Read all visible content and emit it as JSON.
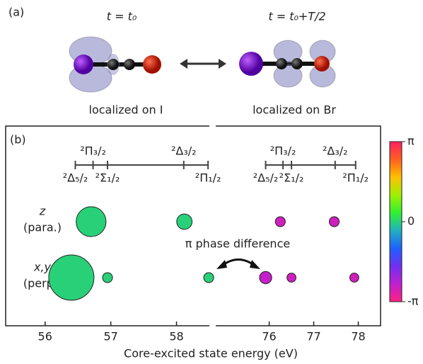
{
  "panel_a": {
    "label": "(a)",
    "states": [
      {
        "time": "t = t₀",
        "caption": "localized on I"
      },
      {
        "time": "t = t₀+T/2",
        "caption": "localized on Br"
      }
    ]
  },
  "chart_data": {
    "type": "bubble",
    "label": "(b)",
    "xlabel": "Core-excited state energy (eV)",
    "categories": [
      [
        "z",
        "(para.)"
      ],
      [
        "x,y",
        "(perp.)"
      ]
    ],
    "annotation": "π phase difference",
    "clim": [
      -3.14159,
      3.14159
    ],
    "cticks": [
      {
        "value": 3.14159,
        "label": "π"
      },
      0,
      {
        "value": -3.14159,
        "label": "-π"
      }
    ],
    "colormap": [
      "#ff2080",
      "#c020d0",
      "#7030f0",
      "#2060ff",
      "#20b0c0",
      "#30f030",
      "#a0f000",
      "#ffc000",
      "#ff6020",
      "#ff2060"
    ],
    "panels": [
      {
        "xlim": [
          55.4,
          58.5
        ],
        "xticks": [
          56,
          57,
          58
        ],
        "levels": [
          {
            "label": "²Δ₅/₂",
            "x": 56.46,
            "side": "below"
          },
          {
            "label": "²Π₃/₂",
            "x": 56.73,
            "side": "above"
          },
          {
            "label": "²Σ₁/₂",
            "x": 56.95,
            "side": "below"
          },
          {
            "label": "²Δ₃/₂",
            "x": 58.11,
            "side": "above"
          },
          {
            "label": "²Π₁/₂",
            "x": 58.48,
            "side": "below"
          }
        ],
        "series": [
          {
            "x": [
              56.7,
              58.12
            ],
            "sizes": [
              0.66,
              0.34
            ],
            "phases": [
              0,
              0
            ]
          },
          {
            "x": [
              56.4,
              56.95,
              58.49
            ],
            "sizes": [
              1,
              0.22,
              0.22
            ],
            "phases": [
              0,
              0,
              0
            ]
          }
        ]
      },
      {
        "xlim": [
          74.8,
          78.5
        ],
        "xticks": [
          76,
          77,
          78
        ],
        "levels": [
          {
            "label": "²Δ₅/₂",
            "x": 75.92,
            "side": "below"
          },
          {
            "label": "²Π₃/₂",
            "x": 76.31,
            "side": "above"
          },
          {
            "label": "²Σ₁/₂",
            "x": 76.5,
            "side": "below"
          },
          {
            "label": "²Δ₃/₂",
            "x": 77.48,
            "side": "above"
          },
          {
            "label": "²Π₁/₂",
            "x": 77.94,
            "side": "below"
          }
        ],
        "series": [
          {
            "x": [
              76.25,
              77.46
            ],
            "sizes": [
              0.22,
              0.22
            ],
            "phases": [
              -2.6,
              -2.6
            ]
          },
          {
            "x": [
              75.92,
              76.5,
              77.91
            ],
            "sizes": [
              0.27,
              0.2,
              0.2
            ],
            "phases": [
              -2.5,
              -2.6,
              -2.6
            ]
          }
        ]
      }
    ]
  }
}
